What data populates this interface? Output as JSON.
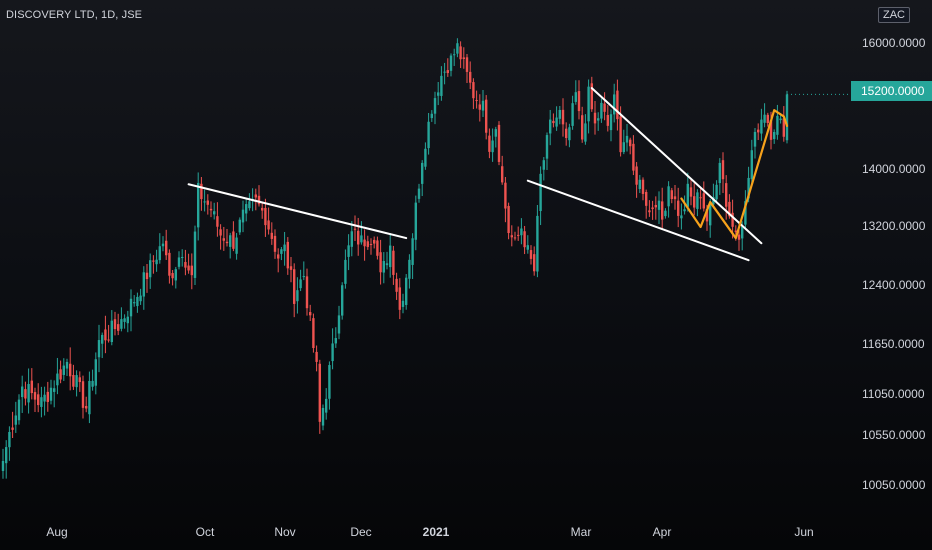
{
  "header": {
    "title": "DISCOVERY LTD, 1D, JSE",
    "currency": "ZAC"
  },
  "last_price_label": "15200.0000",
  "colors": {
    "up": "#26a69a",
    "down": "#ef5350",
    "trendline": "#ffffff",
    "pattern": "#f7a21b",
    "price_tag": "#26a69a"
  },
  "chart_data": {
    "type": "candlestick",
    "symbol": "DISCOVERY LTD",
    "interval": "1D",
    "exchange": "JSE",
    "currency": "ZAC",
    "yticks": [
      "16000.0000",
      "14000.0000",
      "13200.0000",
      "12400.0000",
      "11650.0000",
      "11050.0000",
      "10550.0000",
      "10050.0000"
    ],
    "xticks": [
      {
        "label": "Aug",
        "bold": false
      },
      {
        "label": "Oct",
        "bold": false
      },
      {
        "label": "Nov",
        "bold": false
      },
      {
        "label": "Dec",
        "bold": false
      },
      {
        "label": "2021",
        "bold": true
      },
      {
        "label": "Mar",
        "bold": false
      },
      {
        "label": "Apr",
        "bold": false
      },
      {
        "label": "Jun",
        "bold": false
      }
    ],
    "last_price": 15200,
    "price_path": [
      [
        0,
        10300
      ],
      [
        6,
        11150
      ],
      [
        12,
        10950
      ],
      [
        20,
        11450
      ],
      [
        26,
        10900
      ],
      [
        30,
        11700
      ],
      [
        36,
        11900
      ],
      [
        42,
        12300
      ],
      [
        46,
        12650
      ],
      [
        50,
        13000
      ],
      [
        52,
        12500
      ],
      [
        56,
        12900
      ],
      [
        59,
        12500
      ],
      [
        61,
        13700
      ],
      [
        65,
        13450
      ],
      [
        68,
        13100
      ],
      [
        72,
        13000
      ],
      [
        75,
        13350
      ],
      [
        79,
        13550
      ],
      [
        82,
        13350
      ],
      [
        86,
        12800
      ],
      [
        88,
        12900
      ],
      [
        91,
        12300
      ],
      [
        94,
        12550
      ],
      [
        96,
        11900
      ],
      [
        98,
        11350
      ],
      [
        99,
        10700
      ],
      [
        101,
        11100
      ],
      [
        104,
        11800
      ],
      [
        106,
        12500
      ],
      [
        109,
        13100
      ],
      [
        112,
        13000
      ],
      [
        116,
        13100
      ],
      [
        118,
        12500
      ],
      [
        121,
        12950
      ],
      [
        124,
        12100
      ],
      [
        126,
        12550
      ],
      [
        128,
        13100
      ],
      [
        131,
        14200
      ],
      [
        134,
        15000
      ],
      [
        137,
        15500
      ],
      [
        140,
        15750
      ],
      [
        142,
        15950
      ],
      [
        145,
        15500
      ],
      [
        147,
        15200
      ],
      [
        150,
        15000
      ],
      [
        152,
        14400
      ],
      [
        154,
        14700
      ],
      [
        156,
        13800
      ],
      [
        158,
        13150
      ],
      [
        160,
        12950
      ],
      [
        162,
        13200
      ],
      [
        164,
        12850
      ],
      [
        166,
        12600
      ],
      [
        168,
        13900
      ],
      [
        171,
        14700
      ],
      [
        174,
        14900
      ],
      [
        176,
        14400
      ],
      [
        179,
        15200
      ],
      [
        181,
        14500
      ],
      [
        183,
        15200
      ],
      [
        185,
        14700
      ],
      [
        187,
        15000
      ],
      [
        189,
        14700
      ],
      [
        191,
        15100
      ],
      [
        193,
        14400
      ],
      [
        195,
        14550
      ],
      [
        197,
        13950
      ],
      [
        200,
        13750
      ],
      [
        202,
        13400
      ],
      [
        204,
        13600
      ],
      [
        206,
        13300
      ],
      [
        208,
        13800
      ],
      [
        210,
        13550
      ],
      [
        212,
        13300
      ],
      [
        214,
        13700
      ],
      [
        216,
        13500
      ],
      [
        218,
        13700
      ],
      [
        220,
        13300
      ],
      [
        222,
        13600
      ],
      [
        224,
        14200
      ],
      [
        226,
        13550
      ],
      [
        228,
        13200
      ],
      [
        230,
        13150
      ],
      [
        232,
        13500
      ],
      [
        234,
        14300
      ],
      [
        236,
        14700
      ],
      [
        238,
        14950
      ],
      [
        240,
        14600
      ],
      [
        242,
        14800
      ],
      [
        244,
        14650
      ],
      [
        245,
        15200
      ]
    ],
    "trendlines": [
      {
        "color": "#ffffff",
        "from": [
          58,
          13800
        ],
        "to": [
          126,
          13050
        ]
      },
      {
        "color": "#ffffff",
        "from": [
          184,
          15300
        ],
        "to": [
          237,
          12980
        ]
      },
      {
        "color": "#ffffff",
        "from": [
          164,
          13850
        ],
        "to": [
          233,
          12750
        ]
      }
    ],
    "pattern_path": {
      "color": "#f7a21b",
      "points": [
        [
          212,
          13600
        ],
        [
          218,
          13200
        ],
        [
          221,
          13550
        ],
        [
          229,
          13050
        ],
        [
          241,
          14950
        ],
        [
          244,
          14850
        ],
        [
          245,
          14700
        ]
      ]
    }
  }
}
